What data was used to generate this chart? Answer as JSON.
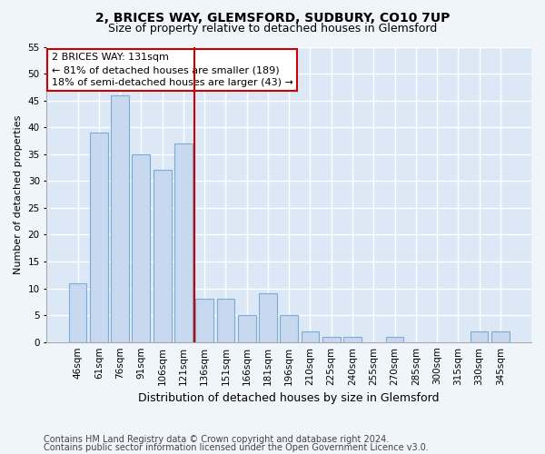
{
  "title1": "2, BRICES WAY, GLEMSFORD, SUDBURY, CO10 7UP",
  "title2": "Size of property relative to detached houses in Glemsford",
  "xlabel": "Distribution of detached houses by size in Glemsford",
  "ylabel": "Number of detached properties",
  "categories": [
    "46sqm",
    "61sqm",
    "76sqm",
    "91sqm",
    "106sqm",
    "121sqm",
    "136sqm",
    "151sqm",
    "166sqm",
    "181sqm",
    "196sqm",
    "210sqm",
    "225sqm",
    "240sqm",
    "255sqm",
    "270sqm",
    "285sqm",
    "300sqm",
    "315sqm",
    "330sqm",
    "345sqm"
  ],
  "values": [
    11,
    39,
    46,
    35,
    32,
    37,
    8,
    8,
    5,
    9,
    5,
    2,
    1,
    1,
    0,
    1,
    0,
    0,
    0,
    2,
    2
  ],
  "bar_color": "#c8d8ee",
  "bar_edge_color": "#7aadd4",
  "property_line_index": 6,
  "property_line_color": "#cc0000",
  "annotation_text": "2 BRICES WAY: 131sqm\n← 81% of detached houses are smaller (189)\n18% of semi-detached houses are larger (43) →",
  "annotation_box_color": "#ffffff",
  "annotation_box_edge": "#cc0000",
  "ylim": [
    0,
    55
  ],
  "yticks": [
    0,
    5,
    10,
    15,
    20,
    25,
    30,
    35,
    40,
    45,
    50,
    55
  ],
  "footer1": "Contains HM Land Registry data © Crown copyright and database right 2024.",
  "footer2": "Contains public sector information licensed under the Open Government Licence v3.0.",
  "bg_color": "#f0f4fb",
  "plot_bg_color": "#dce8f5",
  "grid_color": "#ffffff",
  "title1_fontsize": 10,
  "title2_fontsize": 9,
  "xlabel_fontsize": 9,
  "ylabel_fontsize": 8,
  "tick_fontsize": 7.5,
  "footer_fontsize": 7
}
